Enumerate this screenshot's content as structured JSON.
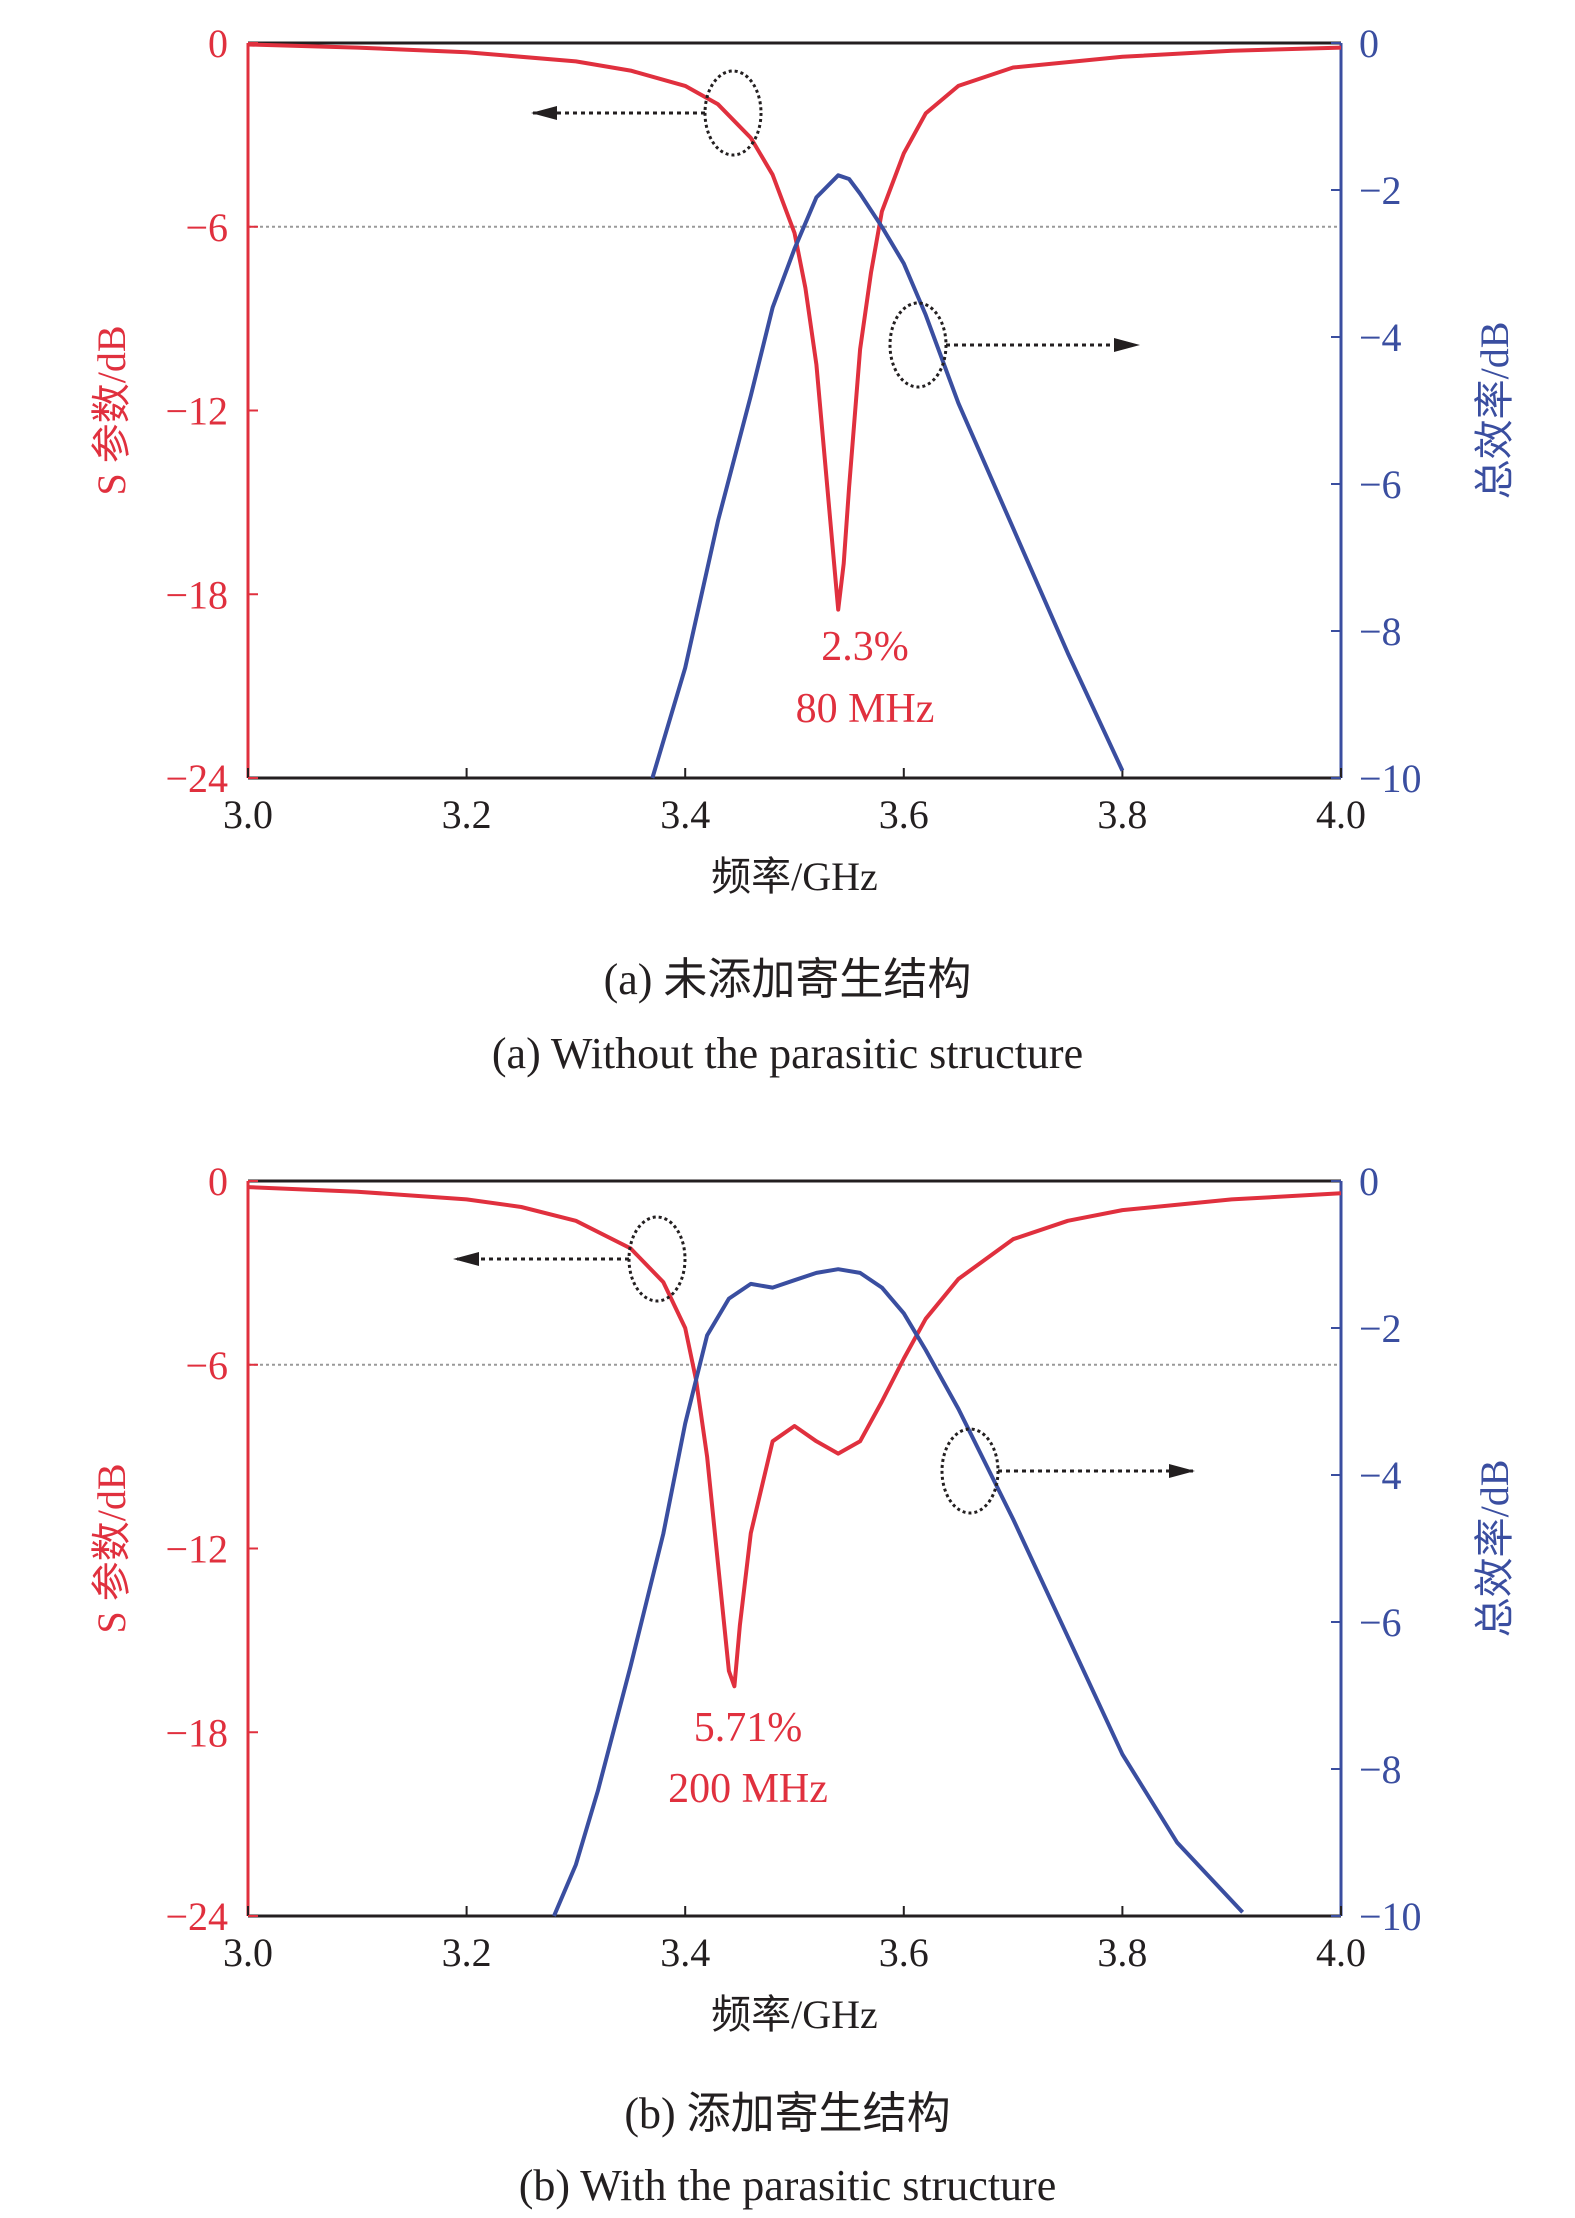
{
  "chart_data": [
    {
      "type": "line",
      "caption_cn": "(a) 未添加寄生结构",
      "caption_en": "(a) Without the parasitic structure",
      "xlabel": "频率/GHz",
      "ylabel_left": "S 参数/dB",
      "ylabel_right": "总效率/dB",
      "xlim": [
        3.0,
        4.0
      ],
      "ylim_left": [
        -24,
        0
      ],
      "ylim_right": [
        -10,
        0
      ],
      "xticks": [
        "3.0",
        "3.2",
        "3.4",
        "3.6",
        "3.8",
        "4.0"
      ],
      "yticks_left": [
        "0",
        "−6",
        "−12",
        "−18",
        "−24"
      ],
      "yticks_right": [
        "0",
        "−2",
        "−4",
        "−6",
        "−8",
        "−10"
      ],
      "reference_line": -6,
      "annotation_lines": [
        "2.3%",
        "80 MHz"
      ],
      "colors": {
        "s_param": "#e0303e",
        "efficiency": "#3a4ea0",
        "left_axis": "#e0303e",
        "right_axis": "#3a4ea0"
      },
      "series": [
        {
          "axis": "left",
          "x": [
            3.0,
            3.1,
            3.2,
            3.3,
            3.35,
            3.4,
            3.43,
            3.46,
            3.48,
            3.5,
            3.51,
            3.52,
            3.53,
            3.54,
            3.545,
            3.55,
            3.56,
            3.57,
            3.58,
            3.6,
            3.62,
            3.65,
            3.7,
            3.8,
            3.9,
            4.0
          ],
          "y": [
            -0.05,
            -0.15,
            -0.3,
            -0.6,
            -0.9,
            -1.4,
            -2.0,
            -3.1,
            -4.3,
            -6.2,
            -8.0,
            -10.5,
            -14.5,
            -18.5,
            -17.0,
            -14.5,
            -10.0,
            -7.5,
            -5.5,
            -3.6,
            -2.3,
            -1.4,
            -0.8,
            -0.45,
            -0.25,
            -0.15
          ]
        },
        {
          "axis": "right",
          "x": [
            3.37,
            3.4,
            3.43,
            3.46,
            3.48,
            3.5,
            3.52,
            3.54,
            3.55,
            3.56,
            3.58,
            3.6,
            3.62,
            3.65,
            3.7,
            3.75,
            3.8
          ],
          "y": [
            -10.0,
            -8.5,
            -6.5,
            -4.8,
            -3.6,
            -2.8,
            -2.1,
            -1.8,
            -1.85,
            -2.05,
            -2.5,
            -3.0,
            -3.7,
            -4.9,
            -6.6,
            -8.3,
            -9.9
          ]
        }
      ]
    },
    {
      "type": "line",
      "caption_cn": "(b) 添加寄生结构",
      "caption_en": "(b) With the parasitic structure",
      "xlabel": "频率/GHz",
      "ylabel_left": "S 参数/dB",
      "ylabel_right": "总效率/dB",
      "xlim": [
        3.0,
        4.0
      ],
      "ylim_left": [
        -24,
        0
      ],
      "ylim_right": [
        -10,
        0
      ],
      "xticks": [
        "3.0",
        "3.2",
        "3.4",
        "3.6",
        "3.8",
        "4.0"
      ],
      "yticks_left": [
        "0",
        "−6",
        "−12",
        "−18",
        "−24"
      ],
      "yticks_right": [
        "0",
        "−2",
        "−4",
        "−6",
        "−8",
        "−10"
      ],
      "reference_line": -6,
      "annotation_lines": [
        "5.71%",
        "200 MHz"
      ],
      "colors": {
        "s_param": "#e0303e",
        "efficiency": "#3a4ea0",
        "left_axis": "#e0303e",
        "right_axis": "#3a4ea0"
      },
      "series": [
        {
          "axis": "left",
          "x": [
            3.0,
            3.1,
            3.2,
            3.25,
            3.3,
            3.35,
            3.38,
            3.4,
            3.41,
            3.42,
            3.43,
            3.44,
            3.445,
            3.45,
            3.46,
            3.48,
            3.5,
            3.52,
            3.54,
            3.56,
            3.58,
            3.6,
            3.62,
            3.65,
            3.7,
            3.75,
            3.8,
            3.9,
            4.0
          ],
          "y": [
            -0.2,
            -0.35,
            -0.6,
            -0.85,
            -1.3,
            -2.2,
            -3.3,
            -4.8,
            -6.5,
            -9.0,
            -12.5,
            -16.0,
            -16.5,
            -14.5,
            -11.5,
            -8.5,
            -8.0,
            -8.5,
            -8.9,
            -8.5,
            -7.2,
            -5.8,
            -4.5,
            -3.2,
            -1.9,
            -1.3,
            -0.95,
            -0.6,
            -0.4
          ]
        },
        {
          "axis": "right",
          "x": [
            3.28,
            3.3,
            3.32,
            3.35,
            3.38,
            3.4,
            3.42,
            3.44,
            3.46,
            3.48,
            3.5,
            3.52,
            3.54,
            3.56,
            3.58,
            3.6,
            3.62,
            3.65,
            3.7,
            3.75,
            3.8,
            3.85,
            3.91
          ],
          "y": [
            -10.0,
            -9.3,
            -8.3,
            -6.6,
            -4.8,
            -3.3,
            -2.1,
            -1.6,
            -1.4,
            -1.45,
            -1.35,
            -1.25,
            -1.2,
            -1.25,
            -1.45,
            -1.8,
            -2.3,
            -3.1,
            -4.6,
            -6.2,
            -7.8,
            -9.0,
            -9.95
          ]
        }
      ]
    }
  ]
}
